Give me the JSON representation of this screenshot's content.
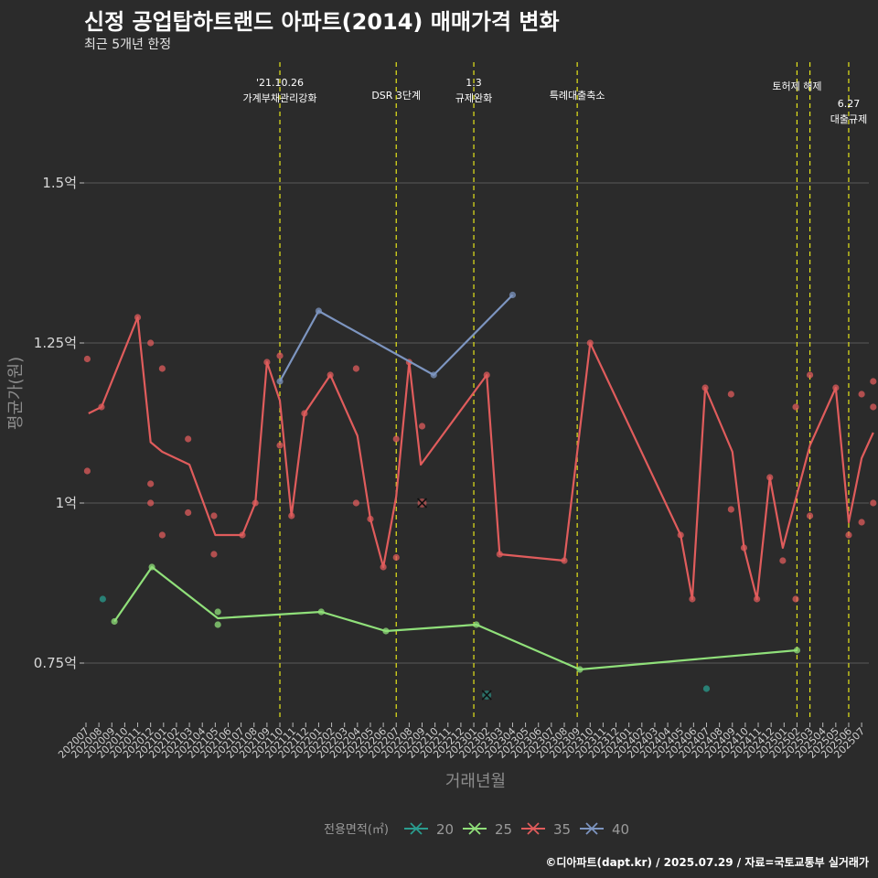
{
  "title": "신정 공업탑하트랜드 아파트(2014) 매매가격 변화",
  "subtitle": "최근 5개년 한정",
  "caption": "©디아파트(dapt.kr) / 2025.07.29 / 자료=국토교통부 실거래가",
  "chart_data": {
    "type": "line",
    "xlabel": "거래년월",
    "ylabel": "평균가(원)",
    "ylim": [
      0.66,
      1.7
    ],
    "y_ticks": [
      {
        "value": 0.75,
        "label": "0.75억"
      },
      {
        "value": 1.0,
        "label": "1억"
      },
      {
        "value": 1.25,
        "label": "1.25억"
      },
      {
        "value": 1.5,
        "label": "1.5억"
      }
    ],
    "x_months": [
      "202007",
      "202008",
      "202009",
      "202010",
      "202011",
      "202012",
      "202101",
      "202102",
      "202103",
      "202104",
      "202105",
      "202106",
      "202107",
      "202108",
      "202109",
      "202110",
      "202111",
      "202112",
      "202201",
      "202202",
      "202203",
      "202204",
      "202205",
      "202206",
      "202207",
      "202208",
      "202209",
      "202210",
      "202211",
      "202212",
      "202301",
      "202302",
      "202303",
      "202304",
      "202305",
      "202306",
      "202307",
      "202308",
      "202309",
      "202310",
      "202311",
      "202312",
      "202401",
      "202402",
      "202403",
      "202404",
      "202405",
      "202406",
      "202407",
      "202408",
      "202409",
      "202410",
      "202411",
      "202412",
      "202501",
      "202502",
      "202503",
      "202504",
      "202505",
      "202506",
      "202507"
    ],
    "grid": "horizontal",
    "events": [
      {
        "x": "202110",
        "lines": [
          "'21.10.26",
          "가계부채관리강화"
        ],
        "level": 1
      },
      {
        "x": "202207",
        "lines": [
          "DSR 3단계"
        ],
        "level": 2
      },
      {
        "x": "202301",
        "lines": [
          "1.3",
          "규제완화"
        ],
        "level": 1
      },
      {
        "x": "202309",
        "lines": [
          "특례대출축소"
        ],
        "level": 2
      },
      {
        "x": "202502",
        "lines": [
          "토허제 해제"
        ],
        "level": 0
      },
      {
        "x": "202503",
        "lines": [],
        "level": 0
      },
      {
        "x": "202506",
        "lines": [
          "6.27",
          "대출규제"
        ],
        "level": 3
      }
    ],
    "legend": {
      "title": "전용면적(㎡)",
      "position": "bottom"
    },
    "series": [
      {
        "name": "20",
        "color": "#2a9d8f",
        "line": [],
        "points": [
          [
            1.3,
            0.85
          ],
          [
            48,
            0.71
          ]
        ],
        "cross": [
          [
            31,
            0.7
          ]
        ]
      },
      {
        "name": "25",
        "color": "#90e07a",
        "line": [
          [
            2.2,
            0.815
          ],
          [
            5.1,
            0.9
          ],
          [
            10.2,
            0.82
          ],
          [
            18.2,
            0.83
          ],
          [
            23.2,
            0.8
          ],
          [
            30.2,
            0.81
          ],
          [
            38.2,
            0.74
          ],
          [
            55.0,
            0.77
          ]
        ],
        "points": [
          [
            2.2,
            0.815
          ],
          [
            5.1,
            0.9
          ],
          [
            10.2,
            0.83
          ],
          [
            10.2,
            0.81
          ],
          [
            18.2,
            0.83
          ],
          [
            23.2,
            0.8
          ],
          [
            30.2,
            0.81
          ],
          [
            38.2,
            0.74
          ],
          [
            55.0,
            0.77
          ]
        ],
        "cross": []
      },
      {
        "name": "35",
        "color": "#e05c5c",
        "line": [
          [
            0.2,
            1.14
          ],
          [
            1.2,
            1.15
          ],
          [
            4.0,
            1.29
          ],
          [
            5.0,
            1.095
          ],
          [
            5.9,
            1.08
          ],
          [
            8.0,
            1.06
          ],
          [
            10.0,
            0.95
          ],
          [
            12.1,
            0.95
          ],
          [
            13.1,
            1.0
          ],
          [
            14.0,
            1.22
          ],
          [
            15.0,
            1.16
          ],
          [
            15.9,
            0.98
          ],
          [
            16.9,
            1.14
          ],
          [
            18.9,
            1.2
          ],
          [
            21.0,
            1.105
          ],
          [
            22.0,
            0.975
          ],
          [
            23.0,
            0.9
          ],
          [
            24.0,
            1.01
          ],
          [
            25.0,
            1.22
          ],
          [
            25.9,
            1.06
          ],
          [
            31.0,
            1.2
          ],
          [
            32.0,
            0.92
          ],
          [
            37.0,
            0.91
          ],
          [
            39.0,
            1.25
          ],
          [
            46.0,
            0.95
          ],
          [
            46.9,
            0.85
          ],
          [
            47.9,
            1.18
          ],
          [
            50.0,
            1.08
          ],
          [
            50.9,
            0.93
          ],
          [
            51.9,
            0.85
          ],
          [
            52.9,
            1.04
          ],
          [
            53.9,
            0.93
          ],
          [
            56.0,
            1.09
          ],
          [
            58.0,
            1.18
          ],
          [
            59.0,
            0.97
          ],
          [
            60.0,
            1.07
          ],
          [
            60.9,
            1.11
          ]
        ],
        "points": [
          [
            0.1,
            1.225
          ],
          [
            0.1,
            1.05
          ],
          [
            1.2,
            1.15
          ],
          [
            4.0,
            1.29
          ],
          [
            5.0,
            1.25
          ],
          [
            5.0,
            1.03
          ],
          [
            5.0,
            1.0
          ],
          [
            5.9,
            1.21
          ],
          [
            5.9,
            0.95
          ],
          [
            7.9,
            1.1
          ],
          [
            7.9,
            0.985
          ],
          [
            9.9,
            0.98
          ],
          [
            9.9,
            0.92
          ],
          [
            12.1,
            0.95
          ],
          [
            13.1,
            1.0
          ],
          [
            14.0,
            1.22
          ],
          [
            15.0,
            1.23
          ],
          [
            15.0,
            1.09
          ],
          [
            15.9,
            0.98
          ],
          [
            16.9,
            1.14
          ],
          [
            18.9,
            1.2
          ],
          [
            20.9,
            1.21
          ],
          [
            20.9,
            1.0
          ],
          [
            22.0,
            0.975
          ],
          [
            23.0,
            0.9
          ],
          [
            24.0,
            1.1
          ],
          [
            24.0,
            0.915
          ],
          [
            25.0,
            1.22
          ],
          [
            26.0,
            1.12
          ],
          [
            31.0,
            1.2
          ],
          [
            32.0,
            0.92
          ],
          [
            37.0,
            0.91
          ],
          [
            39.0,
            1.25
          ],
          [
            46.0,
            0.95
          ],
          [
            46.9,
            0.85
          ],
          [
            47.9,
            1.18
          ],
          [
            49.9,
            1.17
          ],
          [
            49.9,
            0.99
          ],
          [
            50.9,
            0.93
          ],
          [
            51.9,
            0.85
          ],
          [
            52.9,
            1.04
          ],
          [
            53.9,
            0.91
          ],
          [
            54.9,
            1.15
          ],
          [
            54.9,
            0.85
          ],
          [
            56.0,
            1.2
          ],
          [
            56.0,
            0.98
          ],
          [
            58.0,
            1.18
          ],
          [
            59.0,
            0.95
          ],
          [
            60.0,
            1.17
          ],
          [
            60.0,
            0.97
          ],
          [
            60.9,
            1.19
          ],
          [
            60.9,
            1.15
          ],
          [
            60.9,
            1.0
          ]
        ],
        "cross": [
          [
            26.0,
            1.0
          ]
        ]
      },
      {
        "name": "40",
        "color": "#7d95c0",
        "line": [
          [
            15.0,
            1.19
          ],
          [
            18.0,
            1.3
          ],
          [
            26.9,
            1.2
          ],
          [
            33.0,
            1.325
          ]
        ],
        "points": [
          [
            15.0,
            1.19
          ],
          [
            18.0,
            1.3
          ],
          [
            26.9,
            1.2
          ],
          [
            33.0,
            1.325
          ]
        ],
        "cross": []
      }
    ]
  }
}
